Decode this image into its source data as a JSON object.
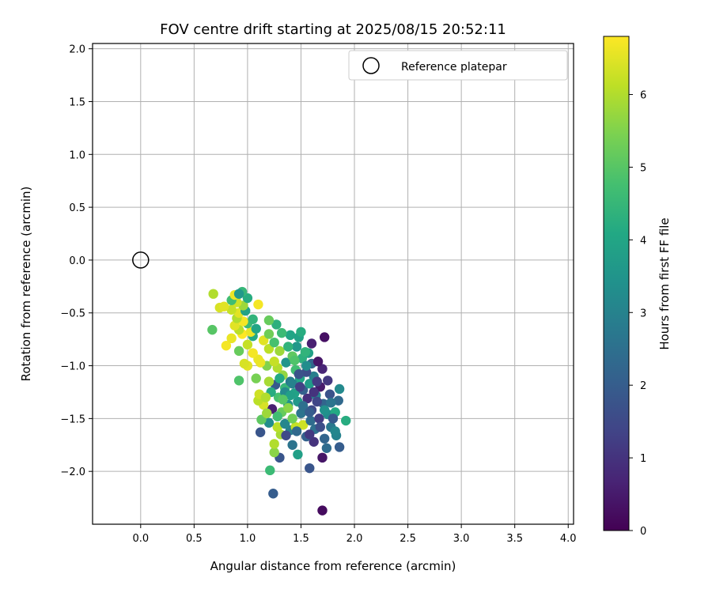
{
  "chart_data": {
    "type": "scatter",
    "title": "FOV centre drift starting at 2025/08/15 20:52:11",
    "xlabel": "Angular distance from reference (arcmin)",
    "ylabel": "Rotation from reference (arcmin)",
    "xlim": [
      -0.45,
      4.05
    ],
    "ylim": [
      -2.5,
      2.05
    ],
    "xticks": [
      0.0,
      0.5,
      1.0,
      1.5,
      2.0,
      2.5,
      3.0,
      3.5,
      4.0
    ],
    "xtick_labels": [
      "0.0",
      "0.5",
      "1.0",
      "1.5",
      "2.0",
      "2.5",
      "3.0",
      "3.5",
      "4.0"
    ],
    "yticks": [
      2.0,
      1.5,
      1.0,
      0.5,
      0.0,
      -0.5,
      -1.0,
      -1.5,
      -2.0
    ],
    "ytick_labels": [
      "2.0",
      "1.5",
      "1.0",
      "0.5",
      "0.0",
      "−0.5",
      "−1.0",
      "−1.5",
      "−2.0"
    ],
    "grid": true,
    "legend_position": "top-right",
    "reference": {
      "label": "Reference platepar",
      "x": 0.0,
      "y": 0.0
    },
    "colorbar": {
      "label": "Hours from first FF file",
      "range": [
        0,
        6.8
      ],
      "ticks": [
        0,
        1,
        2,
        3,
        4,
        5,
        6
      ],
      "tick_labels": [
        "0",
        "1",
        "2",
        "3",
        "4",
        "5",
        "6"
      ],
      "colormap": "viridis"
    },
    "points": [
      {
        "x": 1.7,
        "y": -2.37,
        "t": 0.2
      },
      {
        "x": 1.24,
        "y": -2.21,
        "t": 2.0
      },
      {
        "x": 1.58,
        "y": -1.97,
        "t": 1.8
      },
      {
        "x": 1.21,
        "y": -1.99,
        "t": 4.6
      },
      {
        "x": 1.7,
        "y": -1.87,
        "t": 0.4
      },
      {
        "x": 1.3,
        "y": -1.87,
        "t": 1.8
      },
      {
        "x": 1.47,
        "y": -1.84,
        "t": 3.8
      },
      {
        "x": 1.25,
        "y": -1.82,
        "t": 5.6
      },
      {
        "x": 1.74,
        "y": -1.78,
        "t": 2.4
      },
      {
        "x": 1.86,
        "y": -1.77,
        "t": 2.0
      },
      {
        "x": 1.25,
        "y": -1.74,
        "t": 6.0
      },
      {
        "x": 1.62,
        "y": -1.72,
        "t": 1.0
      },
      {
        "x": 1.55,
        "y": -1.67,
        "t": 2.1
      },
      {
        "x": 1.72,
        "y": -1.69,
        "t": 2.2
      },
      {
        "x": 1.83,
        "y": -1.66,
        "t": 3.0
      },
      {
        "x": 1.31,
        "y": -1.65,
        "t": 5.9
      },
      {
        "x": 1.4,
        "y": -1.61,
        "t": 2.9
      },
      {
        "x": 1.12,
        "y": -1.63,
        "t": 1.8
      },
      {
        "x": 1.63,
        "y": -1.6,
        "t": 2.5
      },
      {
        "x": 1.28,
        "y": -1.58,
        "t": 6.1
      },
      {
        "x": 1.45,
        "y": -1.58,
        "t": 6.2
      },
      {
        "x": 1.52,
        "y": -1.56,
        "t": 6.3
      },
      {
        "x": 1.78,
        "y": -1.58,
        "t": 2.7
      },
      {
        "x": 1.35,
        "y": -1.55,
        "t": 3.1
      },
      {
        "x": 1.2,
        "y": -1.54,
        "t": 3.3
      },
      {
        "x": 1.59,
        "y": -1.52,
        "t": 2.4
      },
      {
        "x": 1.92,
        "y": -1.52,
        "t": 4.2
      },
      {
        "x": 1.67,
        "y": -1.5,
        "t": 1.2
      },
      {
        "x": 1.42,
        "y": -1.5,
        "t": 5.3
      },
      {
        "x": 1.13,
        "y": -1.51,
        "t": 5.1
      },
      {
        "x": 1.75,
        "y": -1.46,
        "t": 3.3
      },
      {
        "x": 1.5,
        "y": -1.45,
        "t": 2.6
      },
      {
        "x": 1.32,
        "y": -1.44,
        "t": 5.2
      },
      {
        "x": 1.82,
        "y": -1.44,
        "t": 4.1
      },
      {
        "x": 1.6,
        "y": -1.42,
        "t": 1.5
      },
      {
        "x": 1.23,
        "y": -1.41,
        "t": 0.6
      },
      {
        "x": 1.15,
        "y": -1.37,
        "t": 6.4
      },
      {
        "x": 1.38,
        "y": -1.37,
        "t": 3.4
      },
      {
        "x": 1.47,
        "y": -1.34,
        "t": 3.6
      },
      {
        "x": 1.71,
        "y": -1.36,
        "t": 2.2
      },
      {
        "x": 1.85,
        "y": -1.33,
        "t": 2.3
      },
      {
        "x": 1.1,
        "y": -1.33,
        "t": 6.1
      },
      {
        "x": 1.56,
        "y": -1.31,
        "t": 0.9
      },
      {
        "x": 1.29,
        "y": -1.3,
        "t": 4.8
      },
      {
        "x": 1.64,
        "y": -1.28,
        "t": 3.0
      },
      {
        "x": 1.77,
        "y": -1.27,
        "t": 1.7
      },
      {
        "x": 1.44,
        "y": -1.26,
        "t": 3.9
      },
      {
        "x": 1.11,
        "y": -1.27,
        "t": 6.3
      },
      {
        "x": 1.52,
        "y": -1.23,
        "t": 2.1
      },
      {
        "x": 1.86,
        "y": -1.22,
        "t": 3.2
      },
      {
        "x": 1.35,
        "y": -1.21,
        "t": 4.5
      },
      {
        "x": 1.68,
        "y": -1.2,
        "t": 0.5
      },
      {
        "x": 1.26,
        "y": -1.18,
        "t": 1.9
      },
      {
        "x": 1.58,
        "y": -1.17,
        "t": 3.7
      },
      {
        "x": 1.4,
        "y": -1.15,
        "t": 2.8
      },
      {
        "x": 1.2,
        "y": -1.15,
        "t": 5.9
      },
      {
        "x": 1.75,
        "y": -1.14,
        "t": 1.1
      },
      {
        "x": 1.49,
        "y": -1.12,
        "t": 4.0
      },
      {
        "x": 1.62,
        "y": -1.1,
        "t": 2.9
      },
      {
        "x": 1.33,
        "y": -1.09,
        "t": 5.7
      },
      {
        "x": 1.08,
        "y": -1.12,
        "t": 5.4
      },
      {
        "x": 0.92,
        "y": -1.14,
        "t": 4.9
      },
      {
        "x": 1.55,
        "y": -1.06,
        "t": 1.6
      },
      {
        "x": 1.45,
        "y": -1.04,
        "t": 4.7
      },
      {
        "x": 1.7,
        "y": -1.03,
        "t": 0.7
      },
      {
        "x": 1.28,
        "y": -1.02,
        "t": 6.0
      },
      {
        "x": 1.18,
        "y": -1.0,
        "t": 5.5
      },
      {
        "x": 1.0,
        "y": -1.0,
        "t": 6.5
      },
      {
        "x": 1.6,
        "y": -0.98,
        "t": 2.2
      },
      {
        "x": 1.36,
        "y": -0.97,
        "t": 3.5
      },
      {
        "x": 1.66,
        "y": -0.96,
        "t": 0.4
      },
      {
        "x": 1.25,
        "y": -0.96,
        "t": 6.2
      },
      {
        "x": 1.1,
        "y": -0.94,
        "t": 6.6
      },
      {
        "x": 1.51,
        "y": -0.93,
        "t": 4.3
      },
      {
        "x": 1.42,
        "y": -0.91,
        "t": 5.1
      },
      {
        "x": 1.57,
        "y": -0.88,
        "t": 3.8
      },
      {
        "x": 1.05,
        "y": -0.88,
        "t": 6.7
      },
      {
        "x": 0.92,
        "y": -0.86,
        "t": 5.2
      },
      {
        "x": 1.3,
        "y": -0.86,
        "t": 5.8
      },
      {
        "x": 1.2,
        "y": -0.84,
        "t": 6.1
      },
      {
        "x": 1.46,
        "y": -0.82,
        "t": 3.6
      },
      {
        "x": 1.38,
        "y": -0.82,
        "t": 4.4
      },
      {
        "x": 1.6,
        "y": -0.79,
        "t": 0.6
      },
      {
        "x": 0.8,
        "y": -0.81,
        "t": 6.7
      },
      {
        "x": 1.0,
        "y": -0.8,
        "t": 6.2
      },
      {
        "x": 1.25,
        "y": -0.78,
        "t": 4.8
      },
      {
        "x": 1.15,
        "y": -0.76,
        "t": 6.5
      },
      {
        "x": 0.85,
        "y": -0.74,
        "t": 6.6
      },
      {
        "x": 1.48,
        "y": -0.73,
        "t": 3.9
      },
      {
        "x": 1.72,
        "y": -0.73,
        "t": 0.3
      },
      {
        "x": 1.05,
        "y": -0.72,
        "t": 4.1
      },
      {
        "x": 1.4,
        "y": -0.71,
        "t": 4.0
      },
      {
        "x": 0.95,
        "y": -0.7,
        "t": 6.8
      },
      {
        "x": 1.2,
        "y": -0.7,
        "t": 5.3
      },
      {
        "x": 1.32,
        "y": -0.69,
        "t": 4.6
      },
      {
        "x": 1.5,
        "y": -0.68,
        "t": 4.2
      },
      {
        "x": 1.03,
        "y": -0.68,
        "t": 6.6
      },
      {
        "x": 0.92,
        "y": -0.66,
        "t": 6.1
      },
      {
        "x": 0.67,
        "y": -0.66,
        "t": 5.0
      },
      {
        "x": 1.08,
        "y": -0.65,
        "t": 4.0
      },
      {
        "x": 0.88,
        "y": -0.62,
        "t": 6.5
      },
      {
        "x": 1.27,
        "y": -0.61,
        "t": 4.3
      },
      {
        "x": 1.0,
        "y": -0.6,
        "t": 4.6
      },
      {
        "x": 0.96,
        "y": -0.58,
        "t": 6.7
      },
      {
        "x": 1.2,
        "y": -0.57,
        "t": 5.2
      },
      {
        "x": 1.05,
        "y": -0.56,
        "t": 4.4
      },
      {
        "x": 0.9,
        "y": -0.55,
        "t": 6.0
      },
      {
        "x": 0.92,
        "y": -0.5,
        "t": 6.5
      },
      {
        "x": 0.98,
        "y": -0.48,
        "t": 3.9
      },
      {
        "x": 0.85,
        "y": -0.47,
        "t": 6.2
      },
      {
        "x": 0.74,
        "y": -0.45,
        "t": 6.4
      },
      {
        "x": 0.96,
        "y": -0.43,
        "t": 5.8
      },
      {
        "x": 1.1,
        "y": -0.42,
        "t": 6.7
      },
      {
        "x": 0.9,
        "y": -0.4,
        "t": 6.3
      },
      {
        "x": 0.85,
        "y": -0.38,
        "t": 4.7
      },
      {
        "x": 1.0,
        "y": -0.36,
        "t": 4.2
      },
      {
        "x": 0.88,
        "y": -0.33,
        "t": 6.6
      },
      {
        "x": 0.68,
        "y": -0.32,
        "t": 6.0
      },
      {
        "x": 0.95,
        "y": -0.3,
        "t": 4.5
      },
      {
        "x": 0.92,
        "y": -0.32,
        "t": 3.6
      },
      {
        "x": 0.78,
        "y": -0.44,
        "t": 6.5
      },
      {
        "x": 1.12,
        "y": -0.97,
        "t": 6.6
      },
      {
        "x": 0.97,
        "y": -0.98,
        "t": 6.4
      },
      {
        "x": 1.35,
        "y": -1.25,
        "t": 3.2
      },
      {
        "x": 1.42,
        "y": -1.17,
        "t": 3.0
      },
      {
        "x": 1.38,
        "y": -1.4,
        "t": 5.6
      },
      {
        "x": 1.52,
        "y": -1.38,
        "t": 2.5
      },
      {
        "x": 1.58,
        "y": -1.44,
        "t": 2.0
      },
      {
        "x": 1.65,
        "y": -1.34,
        "t": 1.4
      },
      {
        "x": 1.68,
        "y": -1.58,
        "t": 1.6
      },
      {
        "x": 1.46,
        "y": -1.62,
        "t": 2.3
      },
      {
        "x": 1.36,
        "y": -1.66,
        "t": 1.5
      },
      {
        "x": 1.55,
        "y": -1.0,
        "t": 3.3
      },
      {
        "x": 1.49,
        "y": -1.2,
        "t": 1.3
      },
      {
        "x": 1.62,
        "y": -1.25,
        "t": 1.0
      },
      {
        "x": 1.3,
        "y": -1.12,
        "t": 4.1
      },
      {
        "x": 1.22,
        "y": -1.25,
        "t": 4.2
      },
      {
        "x": 1.17,
        "y": -1.3,
        "t": 6.0
      },
      {
        "x": 1.78,
        "y": -1.35,
        "t": 2.6
      },
      {
        "x": 1.8,
        "y": -1.5,
        "t": 1.9
      },
      {
        "x": 1.82,
        "y": -1.62,
        "t": 3.1
      },
      {
        "x": 1.58,
        "y": -1.65,
        "t": 1.1
      },
      {
        "x": 1.42,
        "y": -1.75,
        "t": 2.6
      },
      {
        "x": 1.65,
        "y": -1.15,
        "t": 1.2
      },
      {
        "x": 1.54,
        "y": -0.87,
        "t": 4.4
      },
      {
        "x": 1.44,
        "y": -0.95,
        "t": 4.9
      },
      {
        "x": 1.48,
        "y": -1.08,
        "t": 1.7
      },
      {
        "x": 1.4,
        "y": -1.28,
        "t": 3.8
      },
      {
        "x": 1.33,
        "y": -1.32,
        "t": 5.0
      },
      {
        "x": 1.28,
        "y": -1.48,
        "t": 4.7
      },
      {
        "x": 1.18,
        "y": -1.45,
        "t": 5.8
      },
      {
        "x": 1.72,
        "y": -1.42,
        "t": 3.4
      }
    ]
  }
}
